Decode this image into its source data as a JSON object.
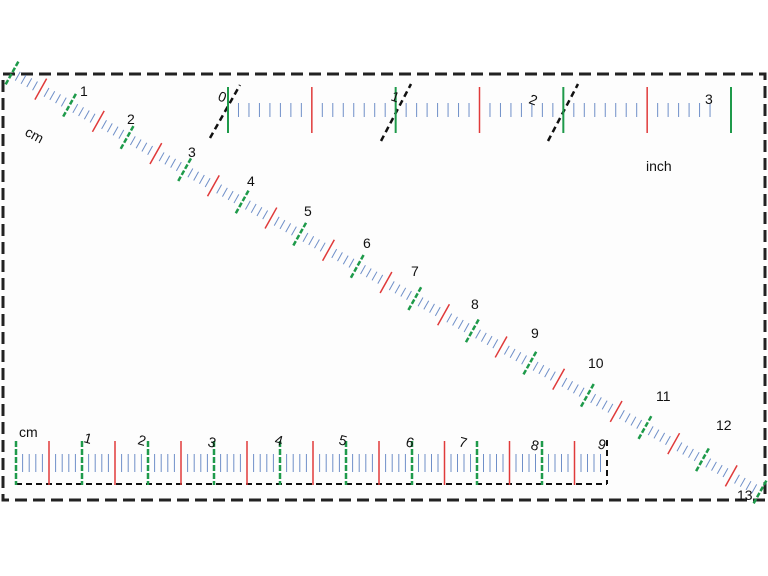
{
  "diagonal_ruler": {
    "unit": "cm",
    "labels": [
      "1",
      "2",
      "3",
      "4",
      "5",
      "6",
      "7",
      "8",
      "9",
      "10",
      "11",
      "12",
      "13"
    ]
  },
  "inch_ruler": {
    "unit": "inch",
    "labels": [
      "0",
      "1",
      "2",
      "3"
    ]
  },
  "bottom_ruler": {
    "unit": "cm",
    "labels": [
      "1",
      "2",
      "3",
      "4",
      "5",
      "6",
      "7",
      "8",
      "9"
    ]
  },
  "colors": {
    "minor_tick": "#6f8fc8",
    "half_tick": "#e03a3a",
    "major_tick": "#1e9a4a",
    "frame": "#222222"
  }
}
